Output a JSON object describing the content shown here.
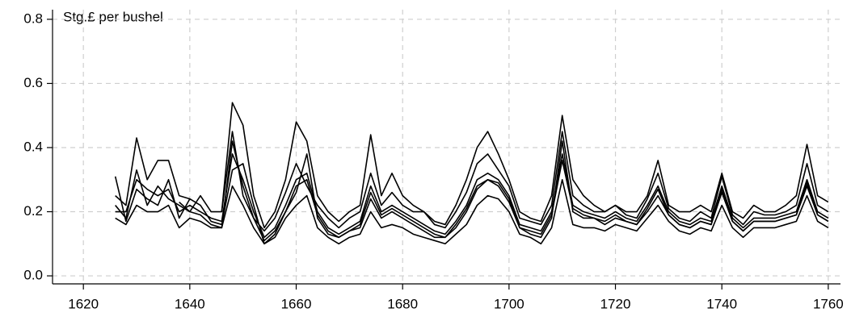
{
  "chart_data": {
    "type": "line",
    "annotation": "Stg.£ per bushel",
    "x": [
      1626,
      1628,
      1630,
      1632,
      1634,
      1636,
      1638,
      1640,
      1642,
      1644,
      1646,
      1648,
      1650,
      1652,
      1654,
      1656,
      1658,
      1660,
      1662,
      1664,
      1666,
      1668,
      1670,
      1672,
      1674,
      1676,
      1678,
      1680,
      1682,
      1684,
      1686,
      1688,
      1690,
      1692,
      1694,
      1696,
      1698,
      1700,
      1702,
      1704,
      1706,
      1708,
      1710,
      1712,
      1714,
      1716,
      1718,
      1720,
      1722,
      1724,
      1726,
      1728,
      1730,
      1732,
      1734,
      1736,
      1738,
      1740,
      1742,
      1744,
      1746,
      1748,
      1750,
      1752,
      1754,
      1756,
      1758,
      1760
    ],
    "series": [
      {
        "color": "#000000",
        "values": [
          0.2,
          0.2,
          0.3,
          0.27,
          0.25,
          0.27,
          0.2,
          0.22,
          0.2,
          0.18,
          0.17,
          0.38,
          0.3,
          0.2,
          0.12,
          0.15,
          0.22,
          0.3,
          0.32,
          0.2,
          0.15,
          0.13,
          0.15,
          0.17,
          0.28,
          0.2,
          0.22,
          0.2,
          0.18,
          0.16,
          0.14,
          0.13,
          0.17,
          0.22,
          0.3,
          0.32,
          0.3,
          0.25,
          0.16,
          0.15,
          0.14,
          0.2,
          0.38,
          0.22,
          0.2,
          0.19,
          0.18,
          0.2,
          0.18,
          0.17,
          0.22,
          0.28,
          0.2,
          0.17,
          0.16,
          0.18,
          0.17,
          0.28,
          0.18,
          0.15,
          0.18,
          0.18,
          0.18,
          0.19,
          0.2,
          0.3,
          0.2,
          0.18
        ]
      },
      {
        "color": "#000000",
        "values": [
          0.25,
          0.22,
          0.43,
          0.3,
          0.36,
          0.36,
          0.25,
          0.24,
          null,
          null,
          0.2,
          0.54,
          0.47,
          0.25,
          0.15,
          0.2,
          0.3,
          0.48,
          0.42,
          0.25,
          0.2,
          0.17,
          0.2,
          0.22,
          0.44,
          0.25,
          0.32,
          0.25,
          0.22,
          0.2,
          0.17,
          0.16,
          0.22,
          0.3,
          0.4,
          0.45,
          0.38,
          0.3,
          0.2,
          0.18,
          0.17,
          0.25,
          0.5,
          0.3,
          0.25,
          0.22,
          0.2,
          0.22,
          0.2,
          0.2,
          0.25,
          0.36,
          0.22,
          0.2,
          0.2,
          0.22,
          0.2,
          0.32,
          0.2,
          0.18,
          0.22,
          0.2,
          0.2,
          0.22,
          0.25,
          0.41,
          0.25,
          0.23
        ]
      },
      {
        "color": "#000000",
        "values": [
          0.18,
          0.16,
          0.22,
          0.2,
          0.2,
          0.22,
          0.15,
          0.18,
          0.17,
          0.15,
          0.15,
          0.28,
          0.22,
          0.15,
          0.1,
          0.12,
          0.18,
          0.22,
          0.25,
          0.15,
          0.12,
          0.1,
          0.12,
          0.13,
          0.2,
          0.15,
          0.16,
          0.15,
          0.13,
          0.12,
          0.11,
          0.1,
          0.13,
          0.16,
          0.22,
          0.25,
          0.24,
          0.2,
          0.13,
          0.12,
          0.1,
          0.15,
          0.3,
          0.16,
          0.15,
          0.15,
          0.14,
          0.16,
          0.15,
          0.14,
          0.18,
          0.22,
          0.17,
          0.14,
          0.13,
          0.15,
          0.14,
          0.22,
          0.15,
          0.12,
          0.15,
          0.15,
          0.15,
          0.16,
          0.17,
          0.25,
          0.17,
          0.15
        ]
      },
      {
        "color": "#000000",
        "values": [
          0.22,
          0.18,
          0.33,
          0.22,
          0.28,
          0.24,
          0.22,
          0.2,
          0.25,
          0.2,
          0.2,
          0.45,
          0.25,
          0.18,
          0.14,
          0.18,
          0.26,
          0.35,
          0.28,
          0.22,
          0.18,
          0.15,
          0.18,
          0.2,
          0.32,
          0.22,
          0.26,
          0.22,
          0.2,
          0.2,
          0.16,
          0.15,
          0.2,
          0.26,
          0.35,
          0.38,
          0.33,
          0.28,
          0.18,
          0.17,
          0.16,
          0.22,
          0.45,
          0.25,
          0.22,
          0.2,
          0.2,
          0.22,
          0.19,
          0.18,
          0.24,
          0.32,
          0.21,
          0.18,
          0.17,
          0.2,
          0.18,
          0.31,
          0.19,
          0.16,
          0.2,
          0.19,
          0.19,
          0.2,
          0.22,
          0.35,
          0.22,
          0.2
        ]
      },
      {
        "color": "#000000",
        "values": [
          0.31,
          0.17,
          0.27,
          0.24,
          0.22,
          0.3,
          0.18,
          0.24,
          0.22,
          0.17,
          0.16,
          0.33,
          0.35,
          0.22,
          0.1,
          0.13,
          0.2,
          0.26,
          0.38,
          0.18,
          0.13,
          0.12,
          0.14,
          0.15,
          0.24,
          0.18,
          0.2,
          0.18,
          0.16,
          0.14,
          0.12,
          0.12,
          0.15,
          0.2,
          0.27,
          0.3,
          0.28,
          0.23,
          0.15,
          0.13,
          0.12,
          0.18,
          0.42,
          0.2,
          0.18,
          0.18,
          0.16,
          0.18,
          0.17,
          0.16,
          0.2,
          0.25,
          0.19,
          0.16,
          0.15,
          0.17,
          0.16,
          0.27,
          0.17,
          0.14,
          0.17,
          0.17,
          0.17,
          0.18,
          0.19,
          0.28,
          0.19,
          0.17
        ]
      },
      {
        "color": "#000000",
        "values": [
          null,
          null,
          null,
          null,
          null,
          null,
          0.23,
          0.2,
          0.19,
          0.16,
          0.15,
          0.42,
          0.28,
          0.18,
          0.11,
          0.14,
          0.2,
          0.28,
          0.3,
          0.19,
          0.14,
          0.12,
          0.14,
          0.16,
          0.26,
          0.19,
          0.21,
          0.19,
          0.17,
          0.15,
          0.13,
          0.12,
          0.16,
          0.21,
          0.28,
          0.3,
          0.29,
          0.24,
          0.15,
          0.14,
          0.13,
          0.19,
          0.36,
          0.21,
          0.19,
          0.18,
          0.17,
          0.19,
          0.17,
          0.16,
          0.21,
          0.27,
          0.19,
          0.16,
          0.15,
          0.17,
          0.16,
          0.26,
          0.17,
          0.14,
          0.17,
          0.17,
          0.17,
          0.18,
          0.19,
          0.29,
          0.19,
          0.17
        ]
      }
    ],
    "xlim": [
      1614.2,
      1762.3
    ],
    "ylim": [
      -0.025,
      0.83
    ],
    "xticks": [
      1620,
      1640,
      1660,
      1680,
      1700,
      1720,
      1740,
      1760
    ],
    "yticks": [
      {
        "value": 0,
        "label": "0.0"
      },
      0.2,
      0.4,
      0.6,
      0.8
    ],
    "grid": true
  }
}
